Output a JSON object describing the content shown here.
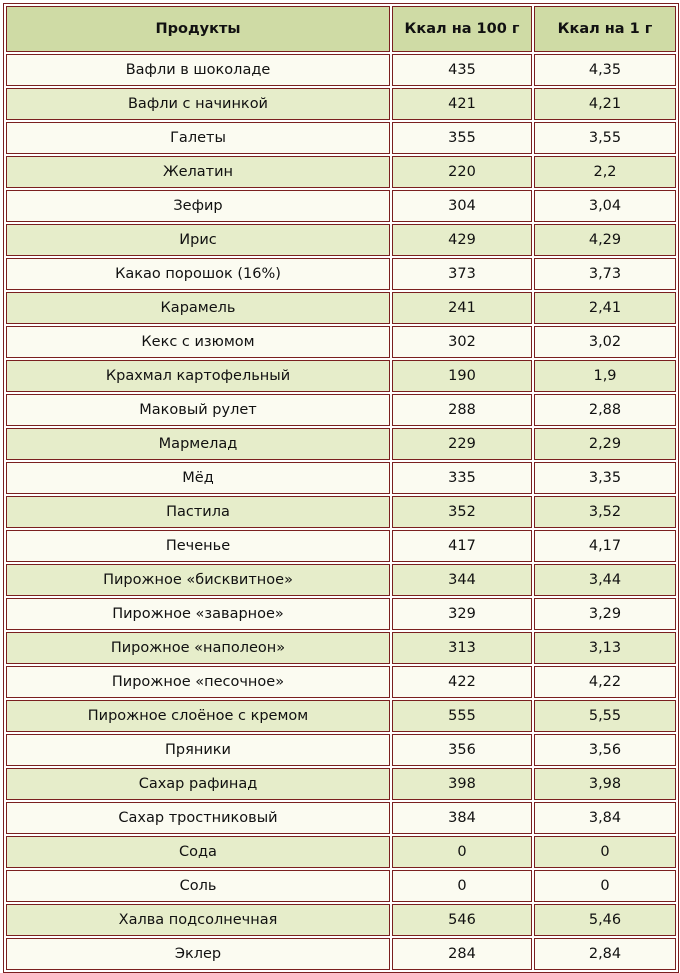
{
  "table": {
    "headers": [
      "Продукты",
      "Ккал на 100 г",
      "Ккал на 1 г"
    ],
    "rows": [
      [
        "Вафли в шоколаде",
        "435",
        "4,35"
      ],
      [
        "Вафли с начинкой",
        "421",
        "4,21"
      ],
      [
        "Галеты",
        "355",
        "3,55"
      ],
      [
        "Желатин",
        "220",
        "2,2"
      ],
      [
        "Зефир",
        "304",
        "3,04"
      ],
      [
        "Ирис",
        "429",
        "4,29"
      ],
      [
        "Какао порошок (16%)",
        "373",
        "3,73"
      ],
      [
        "Карамель",
        "241",
        "2,41"
      ],
      [
        "Кекс с изюмом",
        "302",
        "3,02"
      ],
      [
        "Крахмал картофельный",
        "190",
        "1,9"
      ],
      [
        "Маковый рулет",
        "288",
        "2,88"
      ],
      [
        "Мармелад",
        "229",
        "2,29"
      ],
      [
        "Мёд",
        "335",
        "3,35"
      ],
      [
        "Пастила",
        "352",
        "3,52"
      ],
      [
        "Печенье",
        "417",
        "4,17"
      ],
      [
        "Пирожное «бисквитное»",
        "344",
        "3,44"
      ],
      [
        "Пирожное «заварное»",
        "329",
        "3,29"
      ],
      [
        "Пирожное «наполеон»",
        "313",
        "3,13"
      ],
      [
        "Пирожное «песочное»",
        "422",
        "4,22"
      ],
      [
        "Пирожное слоёное с кремом",
        "555",
        "5,55"
      ],
      [
        "Пряники",
        "356",
        "3,56"
      ],
      [
        "Сахар рафинад",
        "398",
        "3,98"
      ],
      [
        "Сахар тростниковый",
        "384",
        "3,84"
      ],
      [
        "Сода",
        "0",
        "0"
      ],
      [
        "Соль",
        "0",
        "0"
      ],
      [
        "Халва подсолнечная",
        "546",
        "5,46"
      ],
      [
        "Эклер",
        "284",
        "2,84"
      ]
    ]
  },
  "colors": {
    "header_bg": "#cfdba5",
    "row_light": "#fbfbf1",
    "row_dark": "#e6edca",
    "border": "#7a1f1f"
  }
}
